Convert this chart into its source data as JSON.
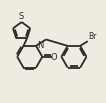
{
  "background_color": "#f0ebe0",
  "line_color": "#2a2a2a",
  "text_color": "#2a2a2a",
  "line_width": 1.3,
  "figsize": [
    1.06,
    1.03
  ],
  "dpi": 100,
  "atoms": {
    "N_label": "N",
    "O_label": "O",
    "Br_label": "Br",
    "S_label": "S"
  },
  "xlim": [
    0.5,
    9.5
  ],
  "ylim": [
    1.5,
    9.0
  ]
}
